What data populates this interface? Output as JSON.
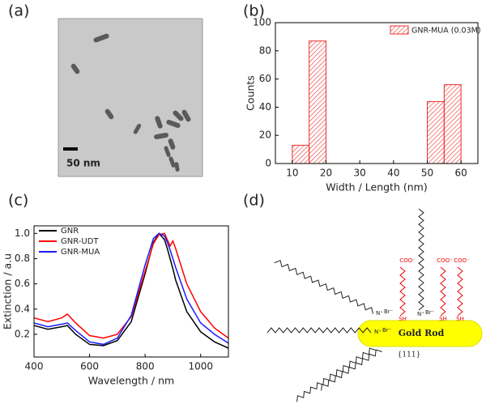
{
  "panel_labels": [
    "(a)",
    "(b)",
    "(c)",
    "(d)"
  ],
  "image": {
    "scale_bar": "50 nm"
  },
  "chart_data": [
    {
      "type": "histogram",
      "bins": [
        10,
        15,
        20,
        25,
        30,
        35,
        40,
        45,
        50,
        55,
        60
      ],
      "values": [
        13,
        87,
        0,
        0,
        0,
        0,
        0,
        0,
        44,
        56
      ],
      "name": "GNR-MUA (0.03M)",
      "color": "#e8322e",
      "xlim": [
        5,
        65
      ],
      "xticks": [
        10,
        20,
        30,
        40,
        50,
        60
      ],
      "ylim": [
        0,
        100
      ],
      "yticks": [
        0,
        20,
        40,
        60,
        80,
        100
      ],
      "x_label": "Width / Length (nm)",
      "y_label": "Counts",
      "legend": "upper right"
    },
    {
      "type": "line",
      "x": [
        400,
        450,
        500,
        520,
        550,
        600,
        650,
        700,
        750,
        800,
        830,
        850,
        870,
        880,
        890,
        900,
        910,
        950,
        1000,
        1050,
        1100
      ],
      "series": [
        {
          "name": "GNR",
          "color": "#000000",
          "values": [
            0.27,
            0.24,
            0.26,
            0.27,
            0.2,
            0.12,
            0.11,
            0.15,
            0.3,
            0.68,
            0.93,
            1.0,
            0.95,
            0.88,
            0.8,
            0.72,
            0.63,
            0.38,
            0.22,
            0.14,
            0.09
          ]
        },
        {
          "name": "GNR-UDT",
          "color": "#ff0000",
          "values": [
            0.33,
            0.3,
            0.33,
            0.36,
            0.29,
            0.19,
            0.17,
            0.2,
            0.34,
            0.7,
            0.92,
            0.99,
            1.0,
            0.95,
            0.9,
            0.94,
            0.88,
            0.6,
            0.38,
            0.25,
            0.17
          ]
        },
        {
          "name": "GNR-MUA",
          "color": "#1a1aff",
          "values": [
            0.29,
            0.26,
            0.28,
            0.29,
            0.23,
            0.14,
            0.12,
            0.17,
            0.35,
            0.75,
            0.96,
            1.0,
            0.98,
            0.93,
            0.87,
            0.8,
            0.73,
            0.48,
            0.29,
            0.2,
            0.13
          ]
        }
      ],
      "xlim": [
        400,
        1100
      ],
      "xticks": [
        400,
        600,
        800,
        1000
      ],
      "ylim": [
        0.02,
        1.06
      ],
      "yticks": [
        0.2,
        0.4,
        0.6,
        0.8,
        {
          "value": 1,
          "label": "1.0"
        }
      ],
      "x_label": "Wavelength / nm",
      "y_label": "Extinction / a.u",
      "legend": "upper left"
    }
  ],
  "diagram": {
    "rod_label": "Gold Rod",
    "facet": "{111}",
    "ligand_end": [
      "COO⁻",
      "COO⁻",
      "COO⁻"
    ],
    "thiol": [
      "SH",
      "SH",
      "SH"
    ],
    "ammonium": [
      "N⁺",
      "N⁺",
      "N⁺"
    ],
    "bromide": [
      "Br⁻",
      "Br⁻",
      "Br⁻"
    ]
  }
}
